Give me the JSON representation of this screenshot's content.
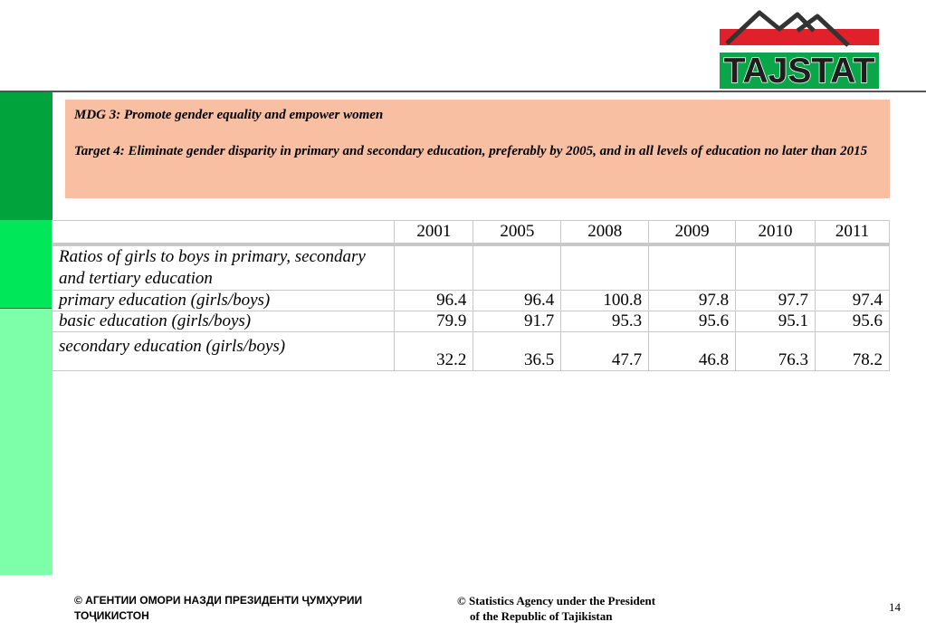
{
  "logo": {
    "text": "TAJSTAT",
    "colors": {
      "red": "#e0202a",
      "green": "#0aa64a",
      "mountains": "#333333"
    }
  },
  "mdg": {
    "goal": "MDG 3: Promote gender equality and empower women",
    "target": "Target 4: Eliminate gender disparity in primary and secondary education, preferably by 2005, and in all levels of education no later than 2015"
  },
  "table": {
    "years": [
      "2001",
      "2005",
      "2008",
      "2009",
      "2010",
      "2011"
    ],
    "rows": [
      {
        "label": "Ratios of girls to boys in primary, secondary and tertiary education",
        "values": [
          "",
          "",
          "",
          "",
          "",
          ""
        ]
      },
      {
        "label": "primary education (girls/boys)",
        "values": [
          "96.4",
          "96.4",
          "100.8",
          "97.8",
          "97.7",
          "97.4"
        ]
      },
      {
        "label": "basic education (girls/boys)",
        "values": [
          "79.9",
          "91.7",
          "95.3",
          "95.6",
          "95.1",
          "95.6"
        ]
      },
      {
        "label": "secondary education (girls/boys)",
        "values": [
          "32.2",
          "36.5",
          "47.7",
          "46.8",
          "76.3",
          "78.2"
        ]
      }
    ]
  },
  "footer": {
    "left_line1": "© АГЕНТИИ ОМОРИ НАЗДИ ПРЕЗИДЕНТИ ҶУМҲУРИИ",
    "left_line2": "ТОҶИКИСТОН",
    "center_line1": "© Statistics Agency under the President",
    "center_line2": "of the Republic of Tajikistan",
    "page_number": "14"
  },
  "colors": {
    "bar_dark": "#00a33c",
    "bar_mid": "#00e85a",
    "bar_light": "#7dffaa",
    "mdg_box": "#f8bfa3"
  }
}
